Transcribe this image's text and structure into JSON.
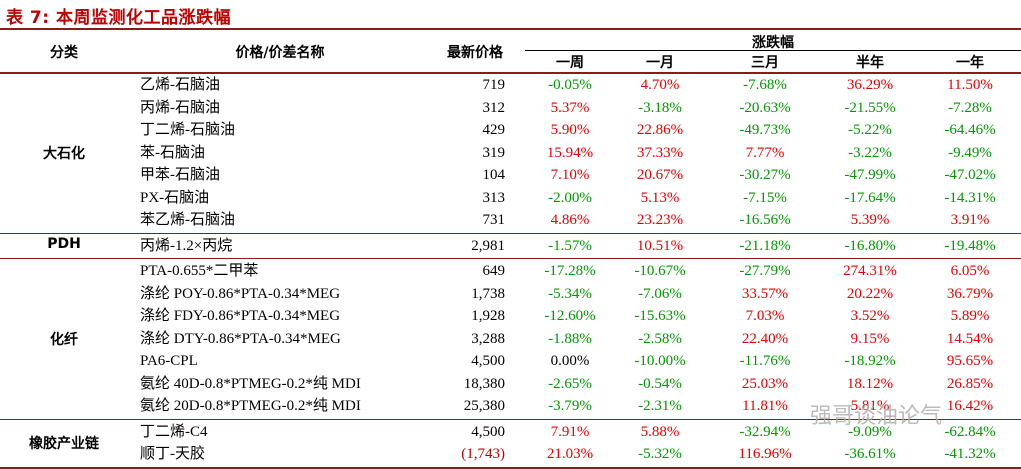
{
  "title": "表 7:  本周监测化工品涨跌幅",
  "headers": {
    "category": "分类",
    "name": "价格/价差名称",
    "price": "最新价格",
    "change": "涨跌幅",
    "periods": [
      "一周",
      "一月",
      "三月",
      "半年",
      "一年"
    ]
  },
  "colors": {
    "up": "#e60000",
    "down": "#009900",
    "accent": "#8b1a1a"
  },
  "groups": [
    {
      "category": "大石化",
      "rows": [
        {
          "name": "乙烯-石脑油",
          "price": "719",
          "changes": [
            "-0.05%",
            "4.70%",
            "-7.68%",
            "36.29%",
            "11.50%"
          ]
        },
        {
          "name": "丙烯-石脑油",
          "price": "312",
          "changes": [
            "5.37%",
            "-3.18%",
            "-20.63%",
            "-21.55%",
            "-7.28%"
          ]
        },
        {
          "name": "丁二烯-石脑油",
          "price": "429",
          "changes": [
            "5.90%",
            "22.86%",
            "-49.73%",
            "-5.22%",
            "-64.46%"
          ]
        },
        {
          "name": "苯-石脑油",
          "price": "319",
          "changes": [
            "15.94%",
            "37.33%",
            "7.77%",
            "-3.22%",
            "-9.49%"
          ]
        },
        {
          "name": "甲苯-石脑油",
          "price": "104",
          "changes": [
            "7.10%",
            "20.67%",
            "-30.27%",
            "-47.99%",
            "-47.02%"
          ]
        },
        {
          "name": "PX-石脑油",
          "price": "313",
          "changes": [
            "-2.00%",
            "5.13%",
            "-7.15%",
            "-17.64%",
            "-14.31%"
          ]
        },
        {
          "name": "苯乙烯-石脑油",
          "price": "731",
          "changes": [
            "4.86%",
            "23.23%",
            "-16.56%",
            "5.39%",
            "3.91%"
          ]
        }
      ]
    },
    {
      "category": "PDH",
      "rows": [
        {
          "name": "丙烯-1.2×丙烷",
          "price": "2,981",
          "changes": [
            "-1.57%",
            "10.51%",
            "-21.18%",
            "-16.80%",
            "-19.48%"
          ]
        }
      ]
    },
    {
      "category": "化纤",
      "rows": [
        {
          "name": "PTA-0.655*二甲苯",
          "price": "649",
          "changes": [
            "-17.28%",
            "-10.67%",
            "-27.79%",
            "274.31%",
            "6.05%"
          ]
        },
        {
          "name": "涤纶 POY-0.86*PTA-0.34*MEG",
          "price": "1,738",
          "changes": [
            "-5.34%",
            "-7.06%",
            "33.57%",
            "20.22%",
            "36.79%"
          ]
        },
        {
          "name": "涤纶 FDY-0.86*PTA-0.34*MEG",
          "price": "1,928",
          "changes": [
            "-12.60%",
            "-15.63%",
            "7.03%",
            "3.52%",
            "5.89%"
          ]
        },
        {
          "name": "涤纶 DTY-0.86*PTA-0.34*MEG",
          "price": "3,288",
          "changes": [
            "-1.88%",
            "-2.58%",
            "22.40%",
            "9.15%",
            "14.54%"
          ]
        },
        {
          "name": "PA6-CPL",
          "price": "4,500",
          "changes": [
            "0.00%",
            "-10.00%",
            "-11.76%",
            "-18.92%",
            "95.65%"
          ]
        },
        {
          "name": "氨纶 40D-0.8*PTMEG-0.2*纯 MDI",
          "price": "18,380",
          "changes": [
            "-2.65%",
            "-0.54%",
            "25.03%",
            "18.12%",
            "26.85%"
          ]
        },
        {
          "name": "氨纶 20D-0.8*PTMEG-0.2*纯 MDI",
          "price": "25,380",
          "changes": [
            "-3.79%",
            "-2.31%",
            "11.81%",
            "5.81%",
            "16.42%"
          ]
        }
      ]
    },
    {
      "category": "橡胶产业链",
      "rows": [
        {
          "name": "丁二烯-C4",
          "price": "4,500",
          "changes": [
            "7.91%",
            "5.88%",
            "-32.94%",
            "-9.09%",
            "-62.84%"
          ]
        },
        {
          "name": "顺丁-天胶",
          "price": "(1,743)",
          "changes": [
            "21.03%",
            "-5.32%",
            "116.96%",
            "-36.61%",
            "-41.32%"
          ]
        }
      ]
    }
  ],
  "watermark": "强哥谈油论气"
}
